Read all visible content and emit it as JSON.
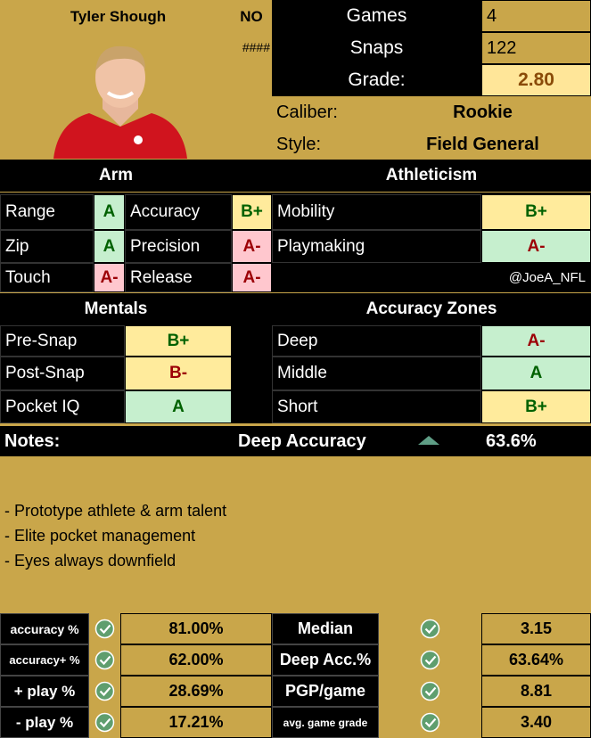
{
  "player": {
    "name": "Tyler Shough",
    "team": "NO",
    "placeholder": "####"
  },
  "summary": [
    {
      "label": "Games",
      "value": "4"
    },
    {
      "label": "Snaps",
      "value": "122"
    },
    {
      "label": "Grade:",
      "value": "2.80"
    }
  ],
  "profile": [
    {
      "label": "Caliber:",
      "value": "Rookie"
    },
    {
      "label": "Style:",
      "value": "Field General"
    }
  ],
  "skills": {
    "headers": [
      "Arm",
      "Athleticism"
    ],
    "rows": [
      [
        {
          "label": "Range",
          "grade": "A",
          "fill": "#c6efce",
          "color": "#006100"
        },
        {
          "label": "Accuracy",
          "grade": "B+",
          "fill": "#ffeb9c",
          "color": "#006100"
        },
        {
          "label": "Mobility",
          "grade": "B+",
          "fill": "#ffeb9c",
          "color": "#006100"
        }
      ],
      [
        {
          "label": "Zip",
          "grade": "A",
          "fill": "#c6efce",
          "color": "#006100"
        },
        {
          "label": "Precision",
          "grade": "A-",
          "fill": "#ffc7ce",
          "color": "#9c0006"
        },
        {
          "label": "Playmaking",
          "grade": "A-",
          "fill": "#c6efce",
          "color": "#9c0006"
        }
      ],
      [
        {
          "label": "Touch",
          "grade": "A-",
          "fill": "#ffc7ce",
          "color": "#9c0006"
        },
        {
          "label": "Release",
          "grade": "A-",
          "fill": "#ffc7ce",
          "color": "#9c0006"
        }
      ]
    ],
    "credit": "@JoeA_NFL"
  },
  "mentals": {
    "headers": [
      "Mentals",
      "Accuracy Zones"
    ],
    "rows": [
      [
        {
          "label": "Pre-Snap",
          "grade": "B+",
          "fill": "#ffeb9c",
          "color": "#006100"
        },
        {
          "label": "Deep",
          "grade": "A-",
          "fill": "#c6efce",
          "color": "#9c0006"
        }
      ],
      [
        {
          "label": "Post-Snap",
          "grade": "B-",
          "fill": "#ffeb9c",
          "color": "#9c0006"
        },
        {
          "label": "Middle",
          "grade": "A",
          "fill": "#c6efce",
          "color": "#006100"
        }
      ],
      [
        {
          "label": "Pocket IQ",
          "grade": "A",
          "fill": "#c6efce",
          "color": "#006100"
        },
        {
          "label": "Short",
          "grade": "B+",
          "fill": "#ffeb9c",
          "color": "#006100"
        }
      ]
    ]
  },
  "notes": {
    "label": "Notes:",
    "highlight": "Deep Accuracy",
    "highlight_value": "63.6%",
    "lines": [
      "- Prototype athlete & arm talent",
      "- Elite pocket management",
      "- Eyes always downfield"
    ]
  },
  "stats": [
    [
      {
        "label": "accuracy %",
        "value": "81.00%"
      },
      {
        "label": "Median",
        "value": "3.15"
      }
    ],
    [
      {
        "label": "accuracy+ %",
        "value": "62.00%"
      },
      {
        "label": "Deep Acc.%",
        "value": "63.64%"
      }
    ],
    [
      {
        "label": "+ play %",
        "value": "28.69%"
      },
      {
        "label": "PGP/game",
        "value": "8.81"
      }
    ],
    [
      {
        "label": "- play %",
        "value": "17.21%"
      },
      {
        "label": "avg. game grade",
        "value": "3.40"
      }
    ]
  ]
}
